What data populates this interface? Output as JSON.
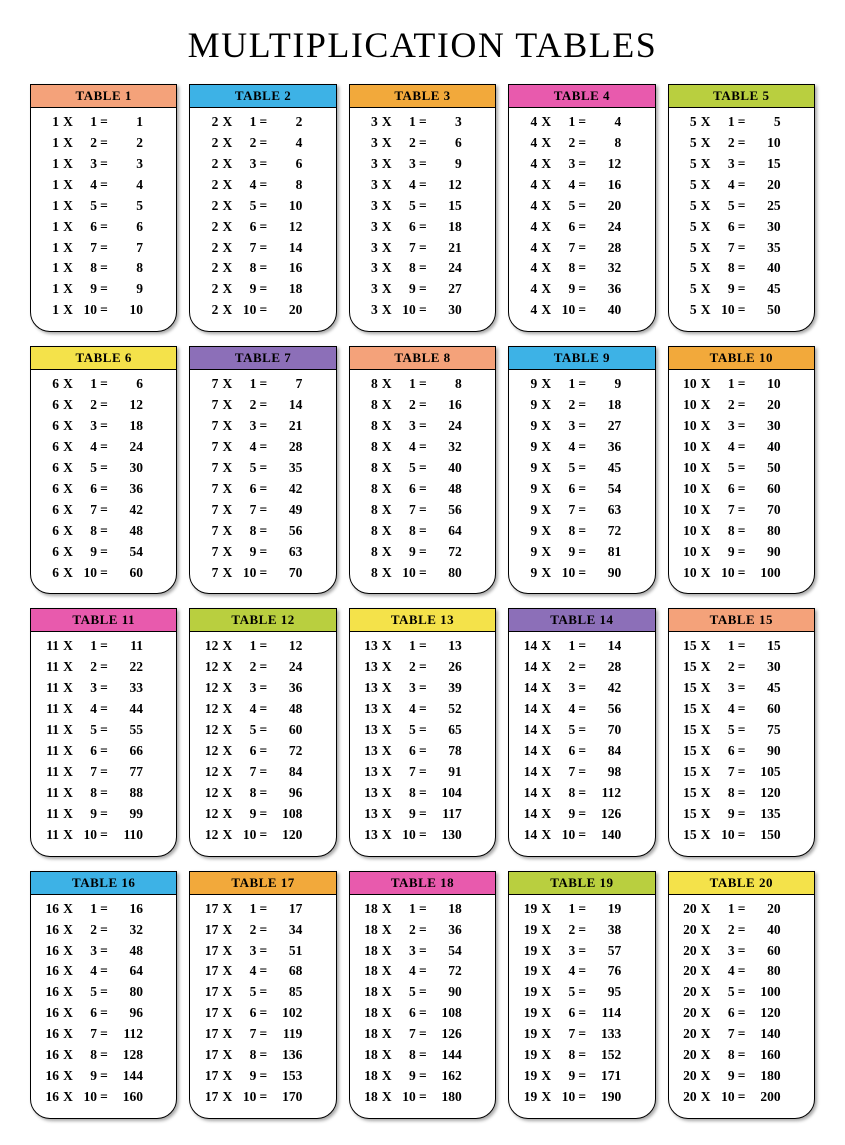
{
  "title": "MULTIPLICATION TABLES",
  "layout": {
    "columns": 5,
    "rows_per_table": 10,
    "card_border_color": "#000000",
    "card_background": "#ffffff",
    "card_shadow": "2px 2px 3px rgba(0,0,0,0.35)",
    "card_border_radius_bottom": 20,
    "title_fontsize": 36,
    "row_fontsize": 13.5,
    "header_fontsize": 13,
    "header_fontweight": "bold",
    "row_fontweight": "bold",
    "text_color": "#000000",
    "bg_color": "#ffffff"
  },
  "x_symbol": "X",
  "eq_symbol": "=",
  "tables": [
    {
      "label": "TABLE 1",
      "header_color": "#f4a27a",
      "n": 1,
      "rows": [
        [
          1,
          1,
          1
        ],
        [
          1,
          2,
          2
        ],
        [
          1,
          3,
          3
        ],
        [
          1,
          4,
          4
        ],
        [
          1,
          5,
          5
        ],
        [
          1,
          6,
          6
        ],
        [
          1,
          7,
          7
        ],
        [
          1,
          8,
          8
        ],
        [
          1,
          9,
          9
        ],
        [
          1,
          10,
          10
        ]
      ]
    },
    {
      "label": "TABLE 2",
      "header_color": "#3db2e6",
      "n": 2,
      "rows": [
        [
          2,
          1,
          2
        ],
        [
          2,
          2,
          4
        ],
        [
          2,
          3,
          6
        ],
        [
          2,
          4,
          8
        ],
        [
          2,
          5,
          10
        ],
        [
          2,
          6,
          12
        ],
        [
          2,
          7,
          14
        ],
        [
          2,
          8,
          16
        ],
        [
          2,
          9,
          18
        ],
        [
          2,
          10,
          20
        ]
      ]
    },
    {
      "label": "TABLE 3",
      "header_color": "#f2a93b",
      "n": 3,
      "rows": [
        [
          3,
          1,
          3
        ],
        [
          3,
          2,
          6
        ],
        [
          3,
          3,
          9
        ],
        [
          3,
          4,
          12
        ],
        [
          3,
          5,
          15
        ],
        [
          3,
          6,
          18
        ],
        [
          3,
          7,
          21
        ],
        [
          3,
          8,
          24
        ],
        [
          3,
          9,
          27
        ],
        [
          3,
          10,
          30
        ]
      ]
    },
    {
      "label": "TABLE 4",
      "header_color": "#e85aad",
      "n": 4,
      "rows": [
        [
          4,
          1,
          4
        ],
        [
          4,
          2,
          8
        ],
        [
          4,
          3,
          12
        ],
        [
          4,
          4,
          16
        ],
        [
          4,
          5,
          20
        ],
        [
          4,
          6,
          24
        ],
        [
          4,
          7,
          28
        ],
        [
          4,
          8,
          32
        ],
        [
          4,
          9,
          36
        ],
        [
          4,
          10,
          40
        ]
      ]
    },
    {
      "label": "TABLE 5",
      "header_color": "#b9cf3f",
      "n": 5,
      "rows": [
        [
          5,
          1,
          5
        ],
        [
          5,
          2,
          10
        ],
        [
          5,
          3,
          15
        ],
        [
          5,
          4,
          20
        ],
        [
          5,
          5,
          25
        ],
        [
          5,
          6,
          30
        ],
        [
          5,
          7,
          35
        ],
        [
          5,
          8,
          40
        ],
        [
          5,
          9,
          45
        ],
        [
          5,
          10,
          50
        ]
      ]
    },
    {
      "label": "TABLE 6",
      "header_color": "#f4e24a",
      "n": 6,
      "rows": [
        [
          6,
          1,
          6
        ],
        [
          6,
          2,
          12
        ],
        [
          6,
          3,
          18
        ],
        [
          6,
          4,
          24
        ],
        [
          6,
          5,
          30
        ],
        [
          6,
          6,
          36
        ],
        [
          6,
          7,
          42
        ],
        [
          6,
          8,
          48
        ],
        [
          6,
          9,
          54
        ],
        [
          6,
          10,
          60
        ]
      ]
    },
    {
      "label": "TABLE 7",
      "header_color": "#8c6fb8",
      "n": 7,
      "rows": [
        [
          7,
          1,
          7
        ],
        [
          7,
          2,
          14
        ],
        [
          7,
          3,
          21
        ],
        [
          7,
          4,
          28
        ],
        [
          7,
          5,
          35
        ],
        [
          7,
          6,
          42
        ],
        [
          7,
          7,
          49
        ],
        [
          7,
          8,
          56
        ],
        [
          7,
          9,
          63
        ],
        [
          7,
          10,
          70
        ]
      ]
    },
    {
      "label": "TABLE 8",
      "header_color": "#f4a27a",
      "n": 8,
      "rows": [
        [
          8,
          1,
          8
        ],
        [
          8,
          2,
          16
        ],
        [
          8,
          3,
          24
        ],
        [
          8,
          4,
          32
        ],
        [
          8,
          5,
          40
        ],
        [
          8,
          6,
          48
        ],
        [
          8,
          7,
          56
        ],
        [
          8,
          8,
          64
        ],
        [
          8,
          9,
          72
        ],
        [
          8,
          10,
          80
        ]
      ]
    },
    {
      "label": "TABLE 9",
      "header_color": "#3db2e6",
      "n": 9,
      "rows": [
        [
          9,
          1,
          9
        ],
        [
          9,
          2,
          18
        ],
        [
          9,
          3,
          27
        ],
        [
          9,
          4,
          36
        ],
        [
          9,
          5,
          45
        ],
        [
          9,
          6,
          54
        ],
        [
          9,
          7,
          63
        ],
        [
          9,
          8,
          72
        ],
        [
          9,
          9,
          81
        ],
        [
          9,
          10,
          90
        ]
      ]
    },
    {
      "label": "TABLE 10",
      "header_color": "#f2a93b",
      "n": 10,
      "rows": [
        [
          10,
          1,
          10
        ],
        [
          10,
          2,
          20
        ],
        [
          10,
          3,
          30
        ],
        [
          10,
          4,
          40
        ],
        [
          10,
          5,
          50
        ],
        [
          10,
          6,
          60
        ],
        [
          10,
          7,
          70
        ],
        [
          10,
          8,
          80
        ],
        [
          10,
          9,
          90
        ],
        [
          10,
          10,
          100
        ]
      ]
    },
    {
      "label": "TABLE 11",
      "header_color": "#e85aad",
      "n": 11,
      "rows": [
        [
          11,
          1,
          11
        ],
        [
          11,
          2,
          22
        ],
        [
          11,
          3,
          33
        ],
        [
          11,
          4,
          44
        ],
        [
          11,
          5,
          55
        ],
        [
          11,
          6,
          66
        ],
        [
          11,
          7,
          77
        ],
        [
          11,
          8,
          88
        ],
        [
          11,
          9,
          99
        ],
        [
          11,
          10,
          110
        ]
      ]
    },
    {
      "label": "TABLE 12",
      "header_color": "#b9cf3f",
      "n": 12,
      "rows": [
        [
          12,
          1,
          12
        ],
        [
          12,
          2,
          24
        ],
        [
          12,
          3,
          36
        ],
        [
          12,
          4,
          48
        ],
        [
          12,
          5,
          60
        ],
        [
          12,
          6,
          72
        ],
        [
          12,
          7,
          84
        ],
        [
          12,
          8,
          96
        ],
        [
          12,
          9,
          108
        ],
        [
          12,
          10,
          120
        ]
      ]
    },
    {
      "label": "TABLE 13",
      "header_color": "#f4e24a",
      "n": 13,
      "rows": [
        [
          13,
          1,
          13
        ],
        [
          13,
          2,
          26
        ],
        [
          13,
          3,
          39
        ],
        [
          13,
          4,
          52
        ],
        [
          13,
          5,
          65
        ],
        [
          13,
          6,
          78
        ],
        [
          13,
          7,
          91
        ],
        [
          13,
          8,
          104
        ],
        [
          13,
          9,
          117
        ],
        [
          13,
          10,
          130
        ]
      ]
    },
    {
      "label": "TABLE 14",
      "header_color": "#8c6fb8",
      "n": 14,
      "rows": [
        [
          14,
          1,
          14
        ],
        [
          14,
          2,
          28
        ],
        [
          14,
          3,
          42
        ],
        [
          14,
          4,
          56
        ],
        [
          14,
          5,
          70
        ],
        [
          14,
          6,
          84
        ],
        [
          14,
          7,
          98
        ],
        [
          14,
          8,
          112
        ],
        [
          14,
          9,
          126
        ],
        [
          14,
          10,
          140
        ]
      ]
    },
    {
      "label": "TABLE 15",
      "header_color": "#f4a27a",
      "n": 15,
      "rows": [
        [
          15,
          1,
          15
        ],
        [
          15,
          2,
          30
        ],
        [
          15,
          3,
          45
        ],
        [
          15,
          4,
          60
        ],
        [
          15,
          5,
          75
        ],
        [
          15,
          6,
          90
        ],
        [
          15,
          7,
          105
        ],
        [
          15,
          8,
          120
        ],
        [
          15,
          9,
          135
        ],
        [
          15,
          10,
          150
        ]
      ]
    },
    {
      "label": "TABLE 16",
      "header_color": "#3db2e6",
      "n": 16,
      "rows": [
        [
          16,
          1,
          16
        ],
        [
          16,
          2,
          32
        ],
        [
          16,
          3,
          48
        ],
        [
          16,
          4,
          64
        ],
        [
          16,
          5,
          80
        ],
        [
          16,
          6,
          96
        ],
        [
          16,
          7,
          112
        ],
        [
          16,
          8,
          128
        ],
        [
          16,
          9,
          144
        ],
        [
          16,
          10,
          160
        ]
      ]
    },
    {
      "label": "TABLE 17",
      "header_color": "#f2a93b",
      "n": 17,
      "rows": [
        [
          17,
          1,
          17
        ],
        [
          17,
          2,
          34
        ],
        [
          17,
          3,
          51
        ],
        [
          17,
          4,
          68
        ],
        [
          17,
          5,
          85
        ],
        [
          17,
          6,
          102
        ],
        [
          17,
          7,
          119
        ],
        [
          17,
          8,
          136
        ],
        [
          17,
          9,
          153
        ],
        [
          17,
          10,
          170
        ]
      ]
    },
    {
      "label": "TABLE 18",
      "header_color": "#e85aad",
      "n": 18,
      "rows": [
        [
          18,
          1,
          18
        ],
        [
          18,
          2,
          36
        ],
        [
          18,
          3,
          54
        ],
        [
          18,
          4,
          72
        ],
        [
          18,
          5,
          90
        ],
        [
          18,
          6,
          108
        ],
        [
          18,
          7,
          126
        ],
        [
          18,
          8,
          144
        ],
        [
          18,
          9,
          162
        ],
        [
          18,
          10,
          180
        ]
      ]
    },
    {
      "label": "TABLE 19",
      "header_color": "#b9cf3f",
      "n": 19,
      "rows": [
        [
          19,
          1,
          19
        ],
        [
          19,
          2,
          38
        ],
        [
          19,
          3,
          57
        ],
        [
          19,
          4,
          76
        ],
        [
          19,
          5,
          95
        ],
        [
          19,
          6,
          114
        ],
        [
          19,
          7,
          133
        ],
        [
          19,
          8,
          152
        ],
        [
          19,
          9,
          171
        ],
        [
          19,
          10,
          190
        ]
      ]
    },
    {
      "label": "TABLE 20",
      "header_color": "#f4e24a",
      "n": 20,
      "rows": [
        [
          20,
          1,
          20
        ],
        [
          20,
          2,
          40
        ],
        [
          20,
          3,
          60
        ],
        [
          20,
          4,
          80
        ],
        [
          20,
          5,
          100
        ],
        [
          20,
          6,
          120
        ],
        [
          20,
          7,
          140
        ],
        [
          20,
          8,
          160
        ],
        [
          20,
          9,
          180
        ],
        [
          20,
          10,
          200
        ]
      ]
    }
  ]
}
